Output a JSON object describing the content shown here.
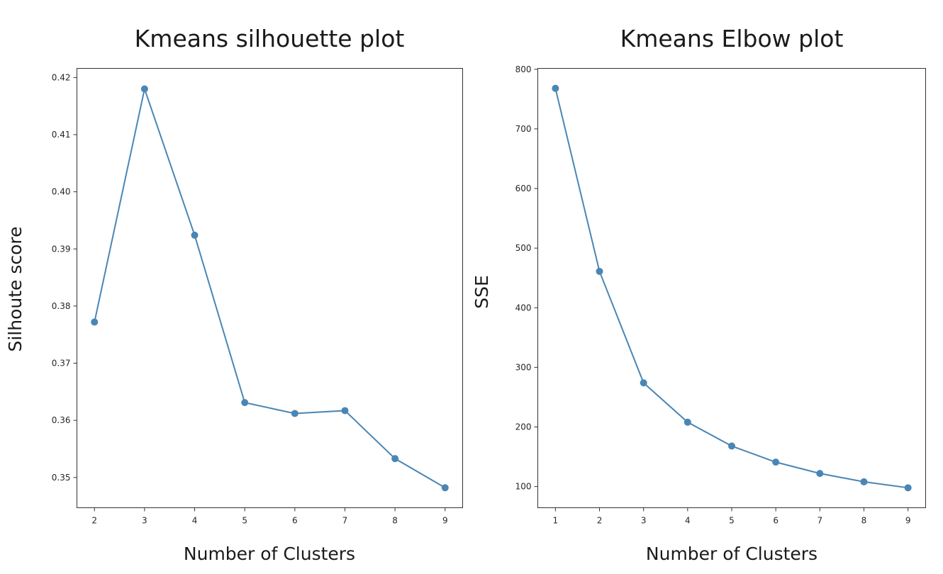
{
  "colors": {
    "series": "#4a86b4",
    "axes": "#333333",
    "text": "#1a1a1a"
  },
  "chart_data": [
    {
      "type": "line",
      "title": "Kmeans silhouette plot",
      "xlabel": "Number of Clusters",
      "ylabel": "Silhoute score",
      "x": [
        2,
        3,
        4,
        5,
        6,
        7,
        8,
        9
      ],
      "series": [
        {
          "values": [
            0.3772,
            0.418,
            0.3924,
            0.3631,
            0.3612,
            0.3617,
            0.3533,
            0.3482
          ]
        }
      ],
      "xticks": [
        2,
        3,
        4,
        5,
        6,
        7,
        8,
        9
      ],
      "yticks": [
        0.35,
        0.36,
        0.37,
        0.38,
        0.39,
        0.4,
        0.41,
        0.42
      ],
      "ytick_labels": [
        "0.35",
        "0.36",
        "0.37",
        "0.38",
        "0.39",
        "0.40",
        "0.41",
        "0.42"
      ],
      "xlim": [
        1.65,
        9.35
      ],
      "ylim": [
        0.3447,
        0.4216
      ],
      "grid": false,
      "marker": "circle"
    },
    {
      "type": "line",
      "title": "Kmeans Elbow plot",
      "xlabel": "Number of Clusters",
      "ylabel": "SSE",
      "x": [
        1,
        2,
        3,
        4,
        5,
        6,
        7,
        8,
        9
      ],
      "series": [
        {
          "values": [
            768,
            461,
            274,
            208,
            168,
            141,
            122,
            108,
            98
          ]
        }
      ],
      "xticks": [
        1,
        2,
        3,
        4,
        5,
        6,
        7,
        8,
        9
      ],
      "yticks": [
        100,
        200,
        300,
        400,
        500,
        600,
        700,
        800
      ],
      "ytick_labels": [
        "100",
        "200",
        "300",
        "400",
        "500",
        "600",
        "700",
        "800"
      ],
      "xlim": [
        0.6,
        9.4
      ],
      "ylim": [
        64.5,
        801.5
      ],
      "grid": false,
      "marker": "circle"
    }
  ]
}
